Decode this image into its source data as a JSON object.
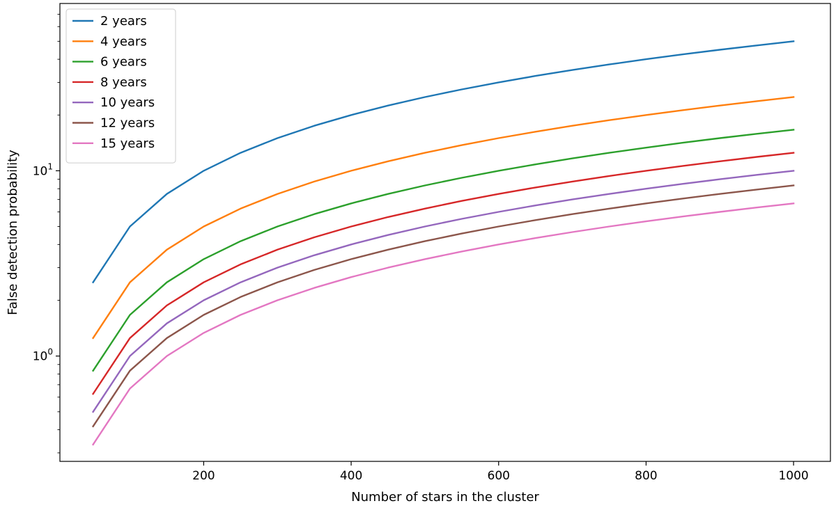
{
  "chart_data": {
    "type": "line",
    "title": "",
    "xlabel": "Number of stars in the cluster",
    "ylabel": "False detection probability",
    "yscale": "log",
    "xlim": [
      5,
      1050
    ],
    "ylim": [
      0.27,
      80
    ],
    "grid": false,
    "legend_position": "top-left",
    "x": [
      50,
      100,
      150,
      200,
      250,
      300,
      350,
      400,
      450,
      500,
      550,
      600,
      650,
      700,
      750,
      800,
      850,
      900,
      950,
      1000
    ],
    "x_ticks": [
      {
        "value": 200,
        "label": "200"
      },
      {
        "value": 400,
        "label": "400"
      },
      {
        "value": 600,
        "label": "600"
      },
      {
        "value": 800,
        "label": "800"
      },
      {
        "value": 1000,
        "label": "1000"
      }
    ],
    "y_ticks": [
      {
        "value": 1,
        "base": "10",
        "exp": "0"
      },
      {
        "value": 10,
        "base": "10",
        "exp": "1"
      }
    ],
    "series": [
      {
        "name": "2 years",
        "color": "#1f77b4",
        "values": [
          2.5,
          5.0,
          7.5,
          10.0,
          12.5,
          15.0,
          17.5,
          20.0,
          22.5,
          25.0,
          27.5,
          30.0,
          32.5,
          35.0,
          37.5,
          40.0,
          42.5,
          45.0,
          47.5,
          50.0
        ]
      },
      {
        "name": "4 years",
        "color": "#ff7f0e",
        "values": [
          1.25,
          2.5,
          3.75,
          5.0,
          6.25,
          7.5,
          8.75,
          10.0,
          11.25,
          12.5,
          13.75,
          15.0,
          16.25,
          17.5,
          18.75,
          20.0,
          21.25,
          22.5,
          23.75,
          25.0
        ]
      },
      {
        "name": "6 years",
        "color": "#2ca02c",
        "values": [
          0.833,
          1.667,
          2.5,
          3.333,
          4.167,
          5.0,
          5.833,
          6.667,
          7.5,
          8.333,
          9.167,
          10.0,
          10.833,
          11.667,
          12.5,
          13.333,
          14.167,
          15.0,
          15.833,
          16.667
        ]
      },
      {
        "name": "8 years",
        "color": "#d62728",
        "values": [
          0.625,
          1.25,
          1.875,
          2.5,
          3.125,
          3.75,
          4.375,
          5.0,
          5.625,
          6.25,
          6.875,
          7.5,
          8.125,
          8.75,
          9.375,
          10.0,
          10.625,
          11.25,
          11.875,
          12.5
        ]
      },
      {
        "name": "10 years",
        "color": "#9467bd",
        "values": [
          0.5,
          1.0,
          1.5,
          2.0,
          2.5,
          3.0,
          3.5,
          4.0,
          4.5,
          5.0,
          5.5,
          6.0,
          6.5,
          7.0,
          7.5,
          8.0,
          8.5,
          9.0,
          9.5,
          10.0
        ]
      },
      {
        "name": "12 years",
        "color": "#8c564b",
        "values": [
          0.417,
          0.833,
          1.25,
          1.667,
          2.083,
          2.5,
          2.917,
          3.333,
          3.75,
          4.167,
          4.583,
          5.0,
          5.417,
          5.833,
          6.25,
          6.667,
          7.083,
          7.5,
          7.917,
          8.333
        ]
      },
      {
        "name": "15 years",
        "color": "#e377c2",
        "values": [
          0.333,
          0.667,
          1.0,
          1.333,
          1.667,
          2.0,
          2.333,
          2.667,
          3.0,
          3.333,
          3.667,
          4.0,
          4.333,
          4.667,
          5.0,
          5.333,
          5.667,
          6.0,
          6.333,
          6.667
        ]
      }
    ]
  }
}
